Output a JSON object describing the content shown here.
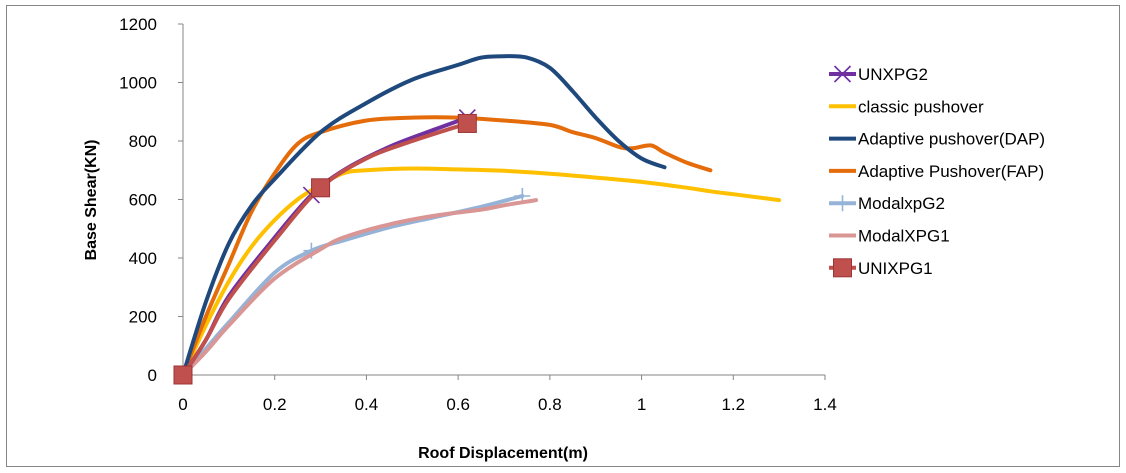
{
  "chart_data": {
    "type": "line",
    "title": "",
    "xlabel": "Roof  Displacement(m)",
    "ylabel": "Base Shear(KN)",
    "xlim": [
      0,
      1.4
    ],
    "ylim": [
      0,
      1200
    ],
    "xticks": [
      0,
      0.2,
      0.4,
      0.6,
      0.8,
      1,
      1.2,
      1.4
    ],
    "yticks": [
      0,
      200,
      400,
      600,
      800,
      1000,
      1200
    ],
    "grid": false,
    "legend_position": "right",
    "series": [
      {
        "name": "UNXPG2",
        "color": "#7030a0",
        "marker": "x",
        "points": [
          [
            0,
            0
          ],
          [
            0.05,
            120
          ],
          [
            0.1,
            270
          ],
          [
            0.2,
            470
          ],
          [
            0.28,
            615
          ],
          [
            0.35,
            700
          ],
          [
            0.45,
            780
          ],
          [
            0.55,
            840
          ],
          [
            0.62,
            880
          ]
        ],
        "marker_points": [
          [
            0.28,
            615
          ],
          [
            0.62,
            880
          ]
        ]
      },
      {
        "name": "classic pushover",
        "color": "#ffc000",
        "marker": "none",
        "points": [
          [
            0,
            0
          ],
          [
            0.05,
            170
          ],
          [
            0.1,
            320
          ],
          [
            0.15,
            440
          ],
          [
            0.2,
            530
          ],
          [
            0.25,
            600
          ],
          [
            0.3,
            650
          ],
          [
            0.35,
            690
          ],
          [
            0.4,
            700
          ],
          [
            0.5,
            706
          ],
          [
            0.6,
            703
          ],
          [
            0.7,
            698
          ],
          [
            0.8,
            688
          ],
          [
            0.9,
            675
          ],
          [
            1.0,
            660
          ],
          [
            1.1,
            640
          ],
          [
            1.15,
            628
          ],
          [
            1.2,
            618
          ],
          [
            1.3,
            598
          ]
        ],
        "marker_points": []
      },
      {
        "name": "Adaptive pushover(DAP)",
        "color": "#1f497d",
        "marker": "none",
        "points": [
          [
            0,
            0
          ],
          [
            0.05,
            250
          ],
          [
            0.1,
            450
          ],
          [
            0.15,
            580
          ],
          [
            0.2,
            670
          ],
          [
            0.3,
            830
          ],
          [
            0.4,
            930
          ],
          [
            0.5,
            1010
          ],
          [
            0.6,
            1060
          ],
          [
            0.65,
            1085
          ],
          [
            0.7,
            1090
          ],
          [
            0.75,
            1085
          ],
          [
            0.8,
            1050
          ],
          [
            0.85,
            970
          ],
          [
            0.9,
            880
          ],
          [
            0.95,
            800
          ],
          [
            1.0,
            740
          ],
          [
            1.05,
            710
          ]
        ],
        "marker_points": []
      },
      {
        "name": "Adaptive Pushover(FAP)",
        "color": "#e46c0a",
        "marker": "none",
        "points": [
          [
            0,
            0
          ],
          [
            0.05,
            200
          ],
          [
            0.1,
            380
          ],
          [
            0.15,
            560
          ],
          [
            0.2,
            690
          ],
          [
            0.25,
            790
          ],
          [
            0.3,
            830
          ],
          [
            0.4,
            870
          ],
          [
            0.5,
            880
          ],
          [
            0.6,
            880
          ],
          [
            0.7,
            870
          ],
          [
            0.8,
            855
          ],
          [
            0.85,
            830
          ],
          [
            0.9,
            810
          ],
          [
            0.95,
            780
          ],
          [
            0.98,
            775
          ],
          [
            1.02,
            785
          ],
          [
            1.05,
            760
          ],
          [
            1.1,
            725
          ],
          [
            1.15,
            700
          ]
        ],
        "marker_points": []
      },
      {
        "name": "ModalxpG2",
        "color": "#95b3d7",
        "marker": "+",
        "points": [
          [
            0,
            0
          ],
          [
            0.05,
            90
          ],
          [
            0.1,
            180
          ],
          [
            0.2,
            350
          ],
          [
            0.28,
            425
          ],
          [
            0.35,
            460
          ],
          [
            0.45,
            505
          ],
          [
            0.55,
            540
          ],
          [
            0.65,
            575
          ],
          [
            0.74,
            612
          ]
        ],
        "marker_points": [
          [
            0.28,
            425
          ],
          [
            0.74,
            612
          ]
        ]
      },
      {
        "name": "ModalXPG1",
        "color": "#d99694",
        "marker": "none",
        "points": [
          [
            0,
            0
          ],
          [
            0.05,
            80
          ],
          [
            0.1,
            170
          ],
          [
            0.2,
            330
          ],
          [
            0.3,
            430
          ],
          [
            0.35,
            470
          ],
          [
            0.45,
            515
          ],
          [
            0.55,
            545
          ],
          [
            0.65,
            565
          ],
          [
            0.7,
            580
          ],
          [
            0.77,
            598
          ]
        ],
        "marker_points": []
      },
      {
        "name": "UNIXPG1",
        "color": "#c0504d",
        "marker": "square",
        "points": [
          [
            0,
            0
          ],
          [
            0.05,
            120
          ],
          [
            0.1,
            260
          ],
          [
            0.2,
            460
          ],
          [
            0.3,
            640
          ],
          [
            0.4,
            740
          ],
          [
            0.5,
            800
          ],
          [
            0.62,
            860
          ]
        ],
        "marker_points": [
          [
            0,
            0
          ],
          [
            0.3,
            640
          ],
          [
            0.62,
            860
          ]
        ]
      }
    ]
  }
}
